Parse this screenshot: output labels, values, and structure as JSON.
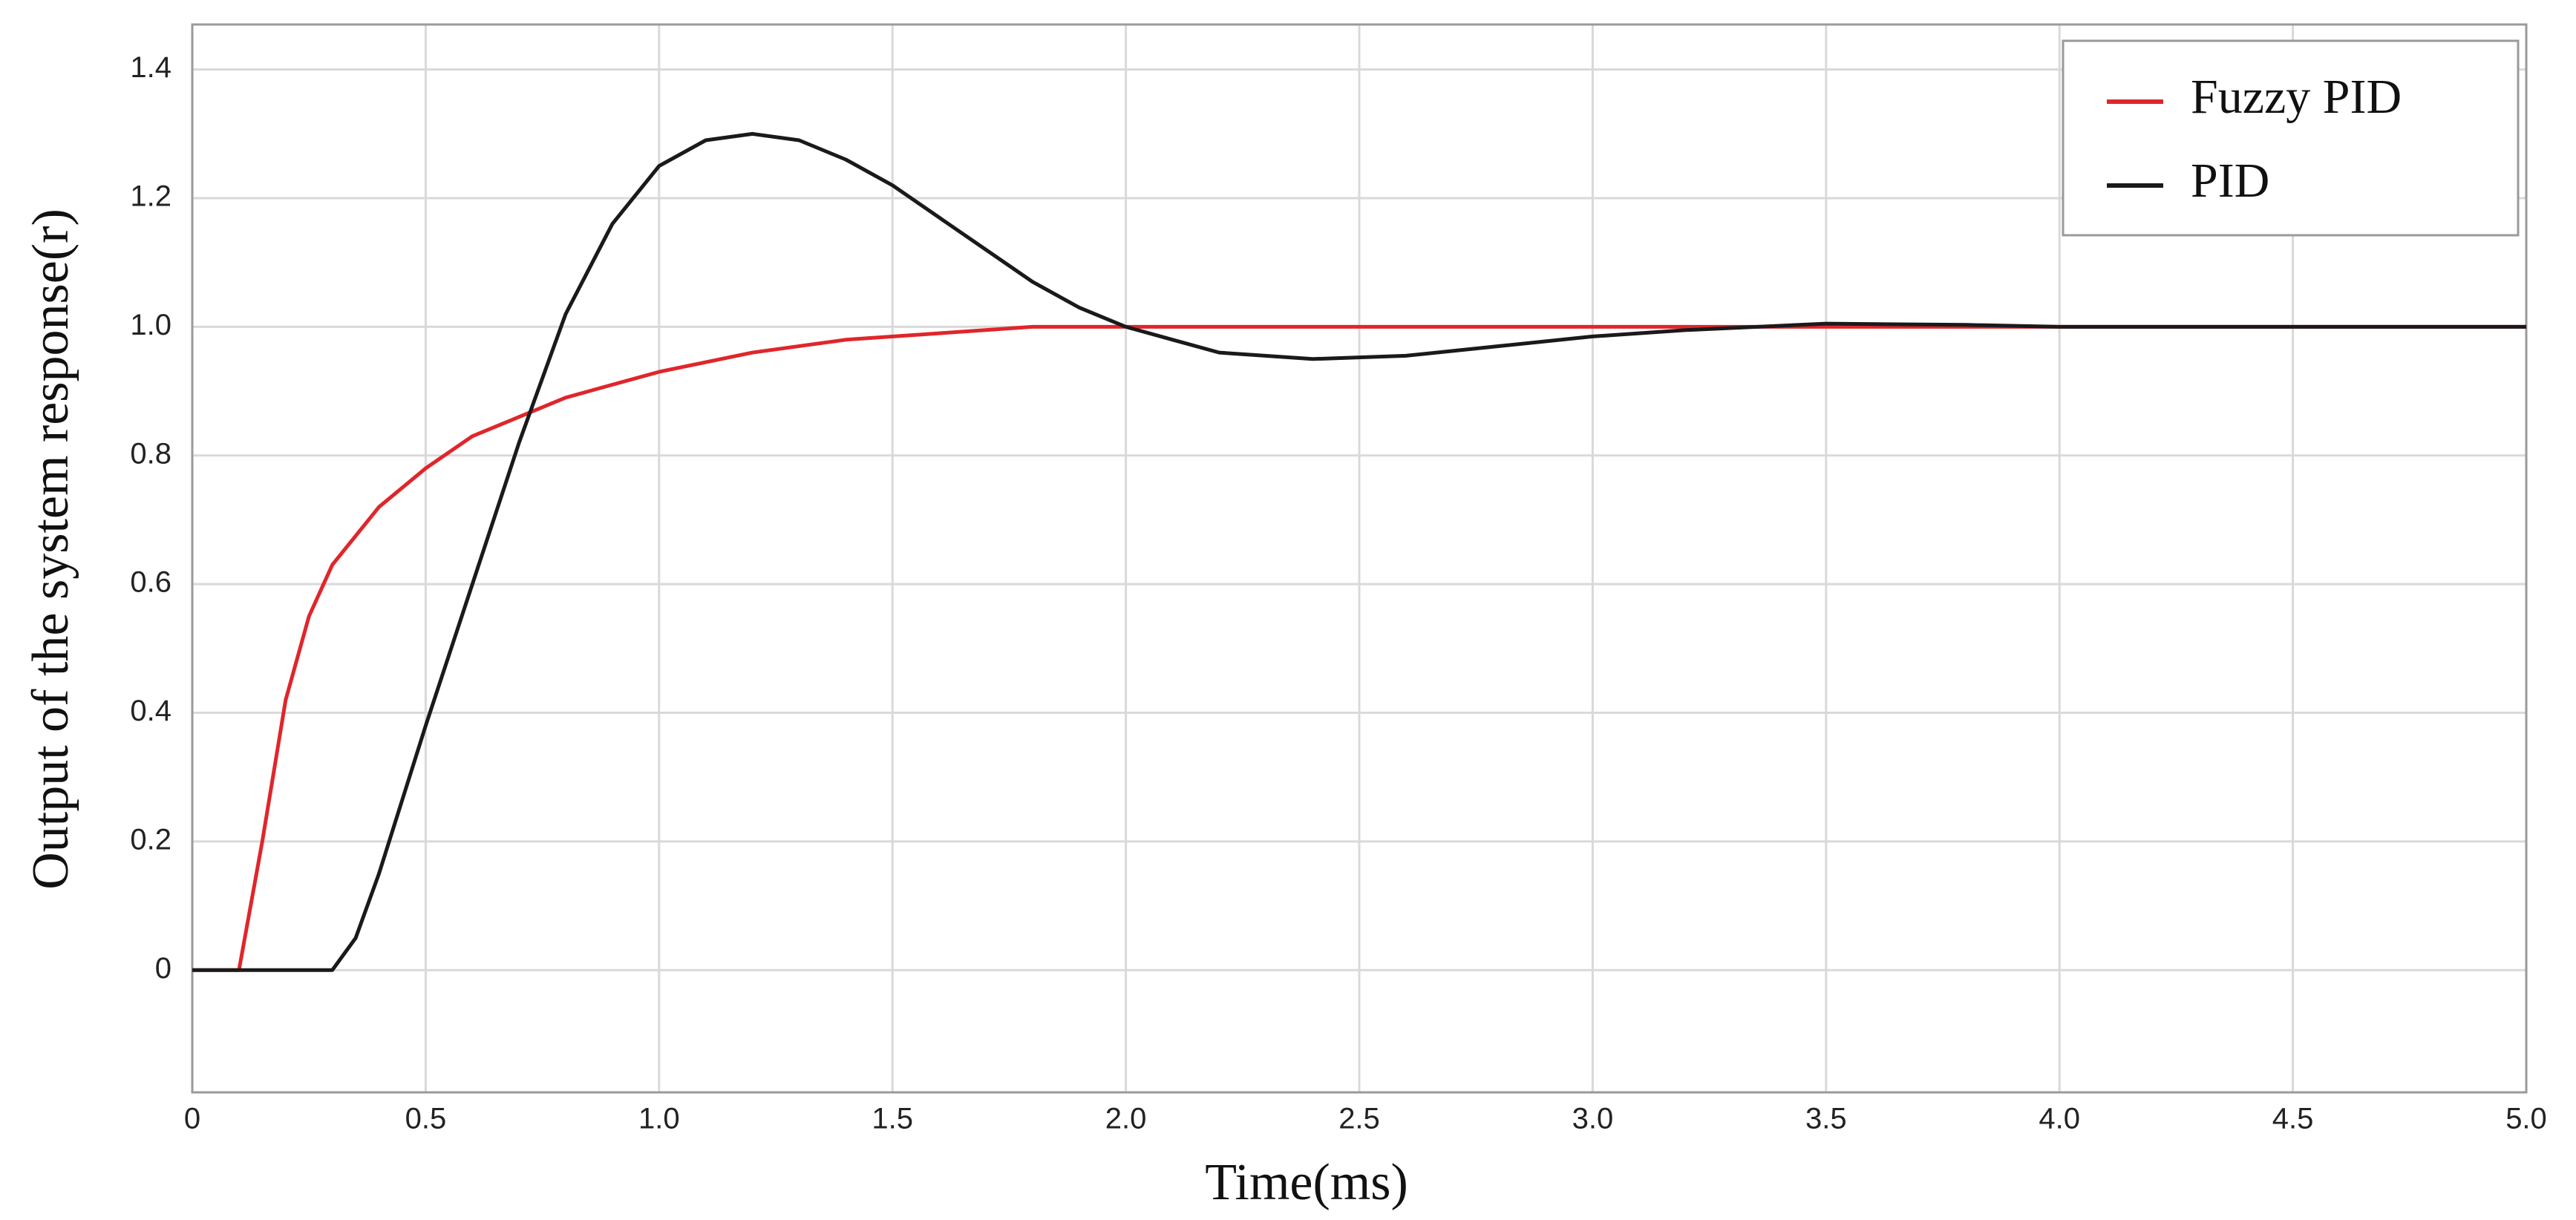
{
  "chart_data": {
    "type": "line",
    "xlabel": "Time(ms)",
    "ylabel": "Output of the system response(r)",
    "xlim": [
      0,
      5
    ],
    "ylim": [
      -0.19,
      1.47
    ],
    "xticks": [
      0,
      0.5,
      {
        "value": 1,
        "label": "1.0"
      },
      1.5,
      {
        "value": 2,
        "label": "2.0"
      },
      2.5,
      {
        "value": 3,
        "label": "3.0"
      },
      3.5,
      {
        "value": 4,
        "label": "4.0"
      },
      4.5,
      {
        "value": 5,
        "label": "5.0"
      }
    ],
    "yticks": [
      0,
      0.2,
      0.4,
      0.6,
      0.8,
      {
        "value": 1,
        "label": "1.0"
      },
      1.2,
      1.4
    ],
    "grid": true,
    "legend": "upper-right",
    "series": [
      {
        "name": "Fuzzy PID",
        "color": "#e0262b",
        "x": [
          0,
          0.1,
          0.15,
          0.2,
          0.25,
          0.3,
          0.4,
          0.5,
          0.6,
          0.7,
          0.8,
          0.9,
          1.0,
          1.2,
          1.4,
          1.6,
          1.8,
          2.0,
          2.5,
          3.0,
          3.5,
          4.0,
          4.5,
          5.0
        ],
        "values": [
          0,
          0,
          0.2,
          0.42,
          0.55,
          0.63,
          0.72,
          0.78,
          0.83,
          0.86,
          0.89,
          0.91,
          0.93,
          0.96,
          0.98,
          0.99,
          1.0,
          1.0,
          1.0,
          1.0,
          1.0,
          1.0,
          1.0,
          1.0
        ]
      },
      {
        "name": "PID",
        "color": "#1a1a1a",
        "x": [
          0,
          0.3,
          0.35,
          0.4,
          0.5,
          0.6,
          0.7,
          0.8,
          0.9,
          1.0,
          1.1,
          1.2,
          1.3,
          1.4,
          1.5,
          1.6,
          1.7,
          1.8,
          1.9,
          2.0,
          2.1,
          2.2,
          2.4,
          2.6,
          2.8,
          3.0,
          3.2,
          3.5,
          3.8,
          4.0,
          4.5,
          5.0
        ],
        "values": [
          0,
          0,
          0.05,
          0.15,
          0.38,
          0.6,
          0.82,
          1.02,
          1.16,
          1.25,
          1.29,
          1.3,
          1.29,
          1.26,
          1.22,
          1.17,
          1.12,
          1.07,
          1.03,
          1.0,
          0.98,
          0.96,
          0.95,
          0.955,
          0.97,
          0.985,
          0.995,
          1.005,
          1.003,
          1.0,
          1.0,
          1.0
        ]
      }
    ]
  }
}
